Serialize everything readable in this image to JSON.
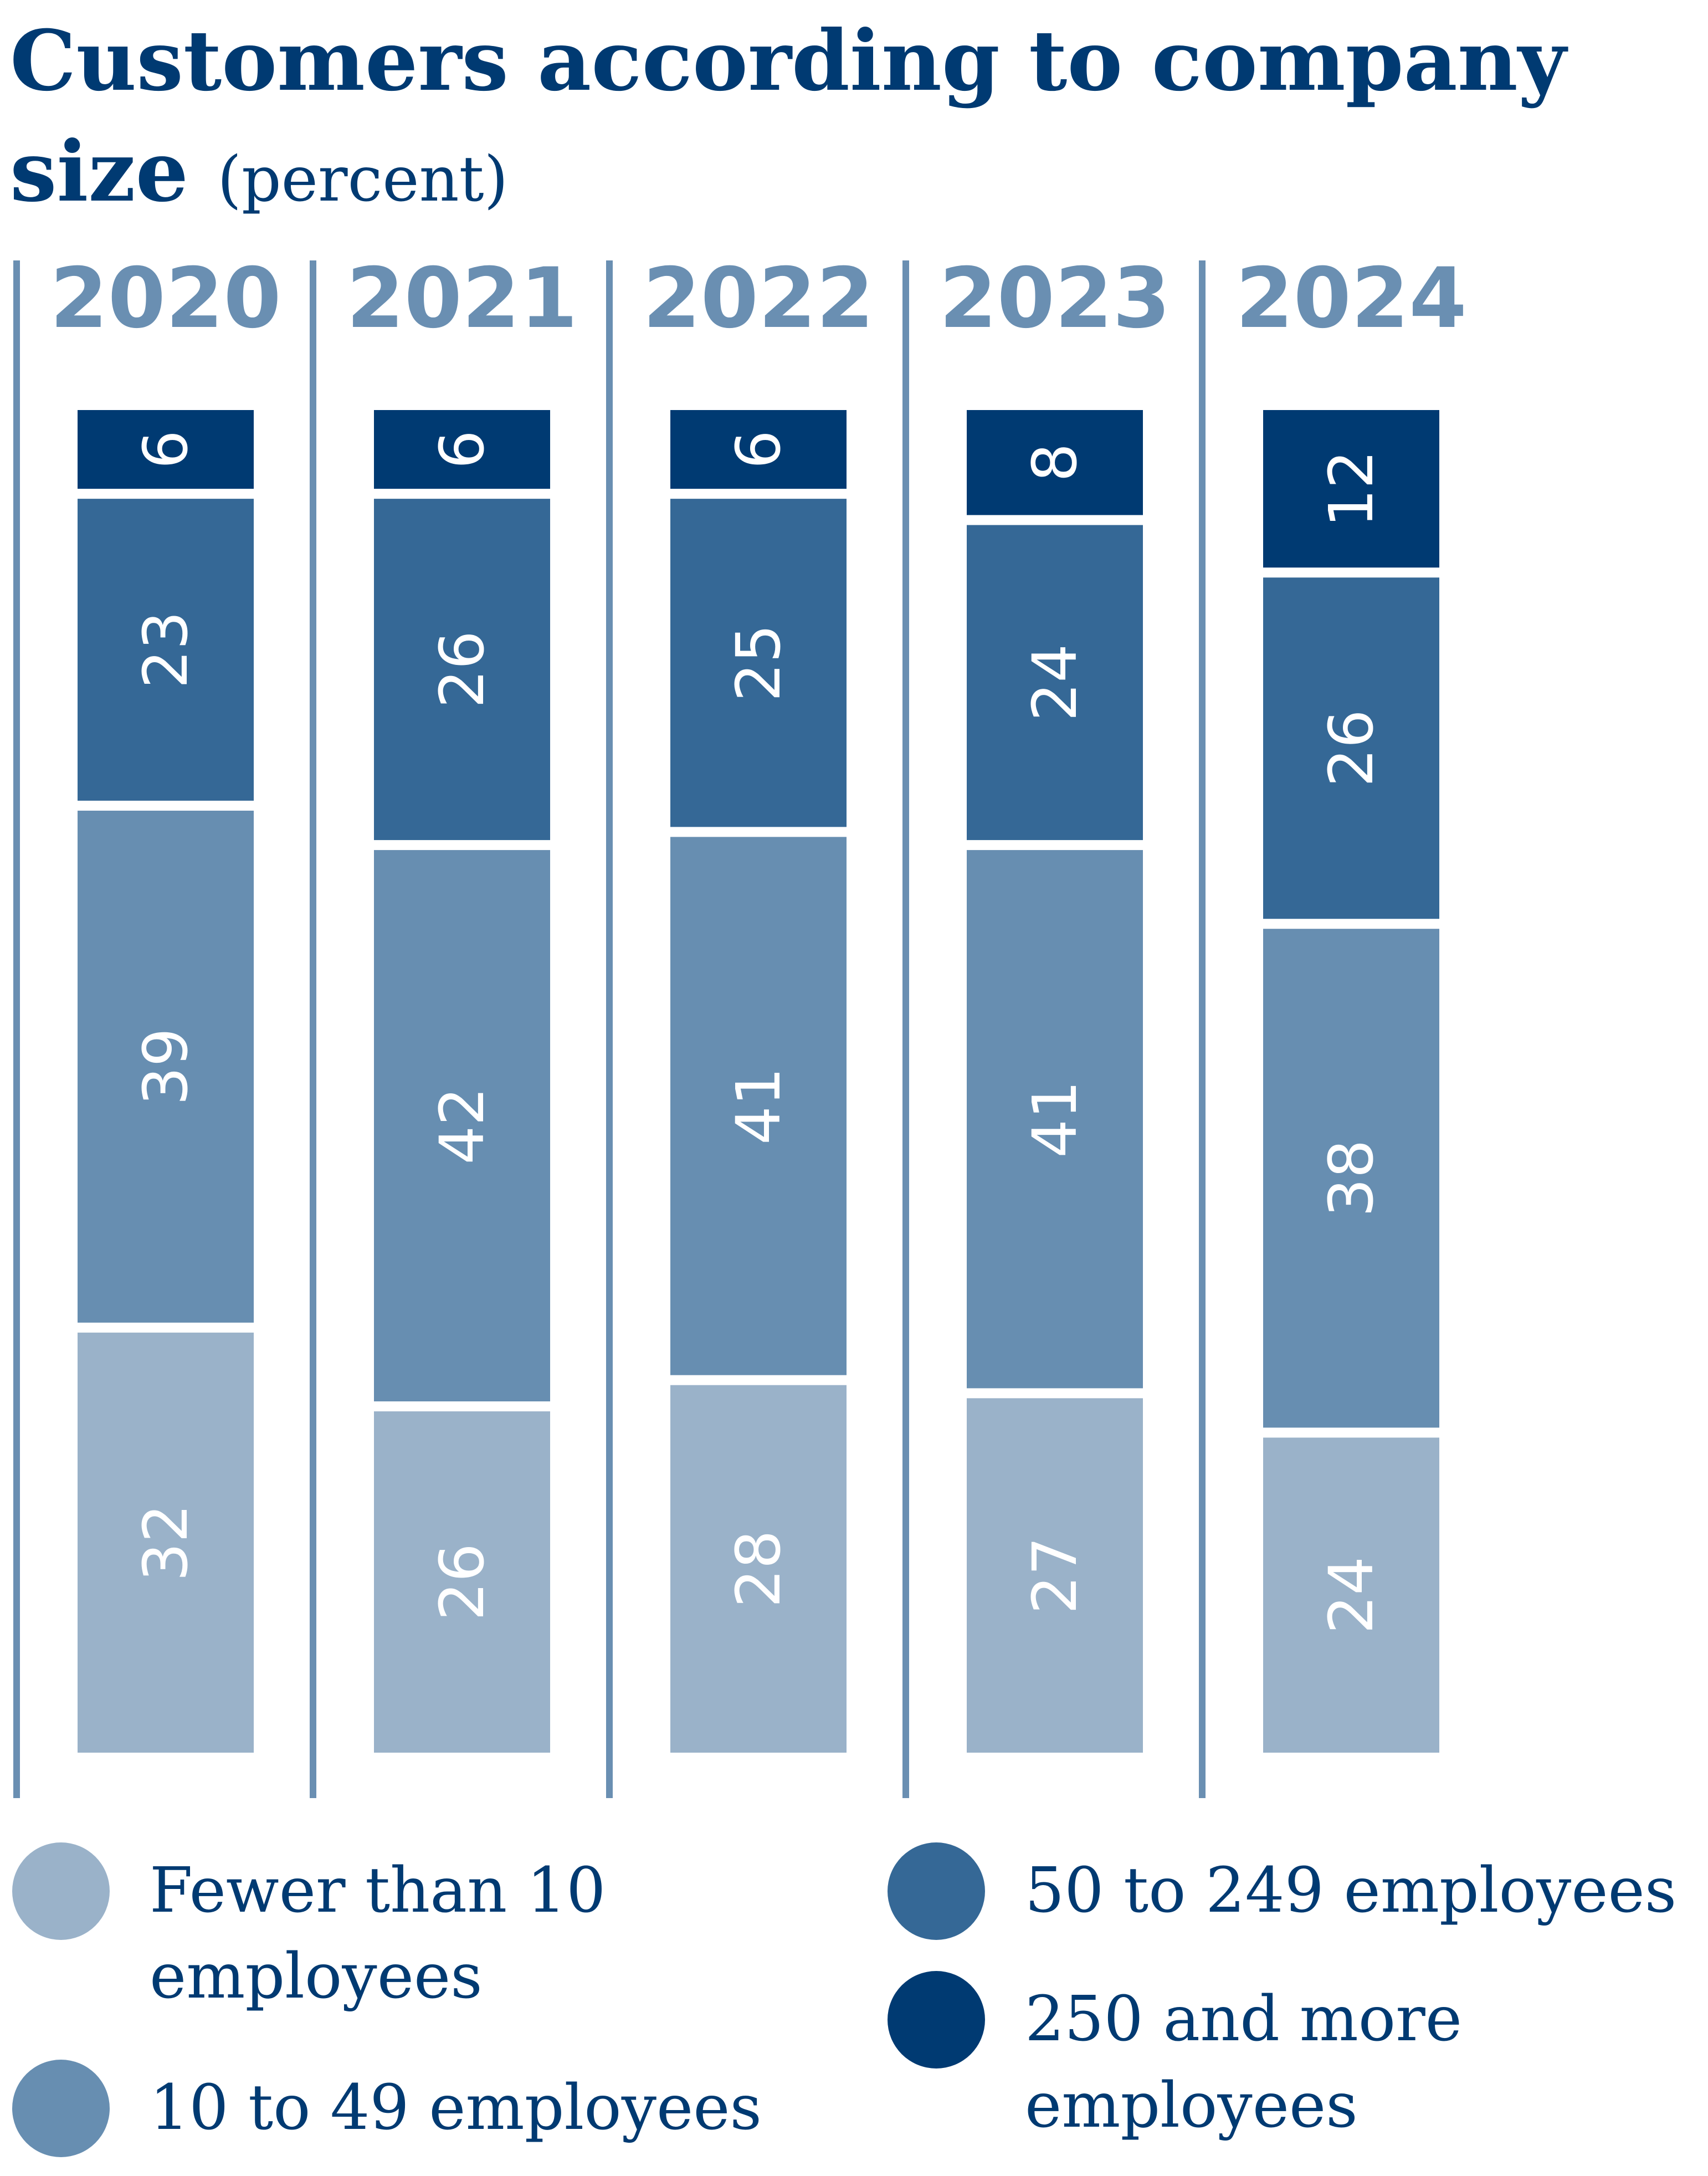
{
  "title": "Customers according to company size",
  "subtitle": "(percent)",
  "chart_data": {
    "type": "bar",
    "stacked": true,
    "orientation": "vertical",
    "categories": [
      "2020",
      "2021",
      "2022",
      "2023",
      "2024"
    ],
    "series": [
      {
        "name": "Fewer than 10 employees",
        "values": [
          32,
          26,
          28,
          27,
          24
        ],
        "color": "#9ab2c9"
      },
      {
        "name": "10 to 49 employees",
        "values": [
          39,
          42,
          41,
          41,
          38
        ],
        "color": "#678eb1"
      },
      {
        "name": "50 to 249 employees",
        "values": [
          23,
          26,
          25,
          24,
          26
        ],
        "color": "#356896"
      },
      {
        "name": "250 and more employees",
        "values": [
          6,
          6,
          6,
          8,
          12
        ],
        "color": "#003a72"
      }
    ],
    "data_labels": "rotated, inside segments",
    "legend_position": "bottom",
    "grid": false,
    "divider_color": "#6a8fb2"
  }
}
